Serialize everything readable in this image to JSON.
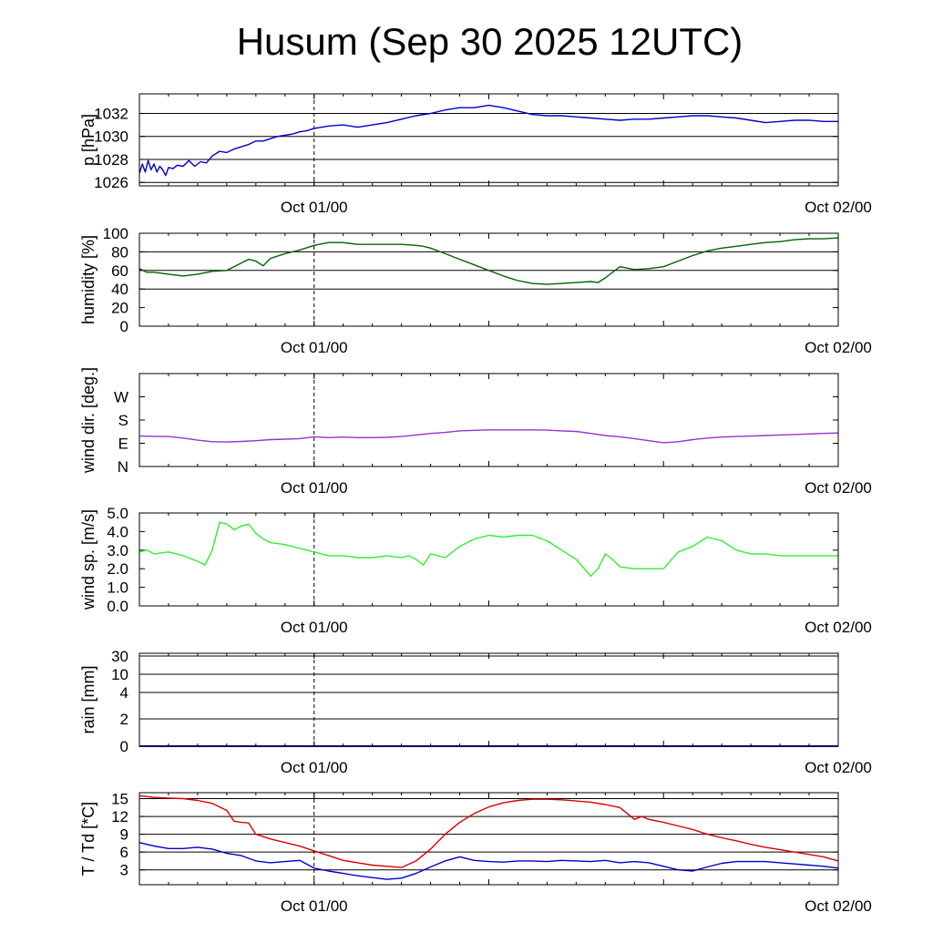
{
  "title": "Husum (Sep 30 2025 12UTC)",
  "colors": {
    "pressure": "#0000cc",
    "humidity": "#006400",
    "wind_dir": "#9932cc",
    "wind_speed": "#33ee33",
    "rain": "#0000cc",
    "temperature": "#dd0000",
    "dewpoint": "#0000cc"
  },
  "chart_data": [
    {
      "type": "line",
      "name": "pressure",
      "ylabel": "p [hPa]",
      "x_tick_labels": [
        "Oct 01/00",
        "Oct 02/00"
      ],
      "x_range_hours": [
        -12,
        36
      ],
      "ylim": [
        1025.7,
        1033.7
      ],
      "yticks": [
        1026,
        1028,
        1030,
        1032
      ],
      "ytick_labels": [
        "1026",
        "1028",
        "1030",
        "1032"
      ],
      "grid_lines": [
        1026,
        1028,
        1030,
        1032
      ],
      "series": [
        {
          "x": [
            -12,
            -11.8,
            -11.6,
            -11.4,
            -11.2,
            -11,
            -10.8,
            -10.6,
            -10.4,
            -10.2,
            -10,
            -9.7,
            -9.4,
            -9,
            -8.6,
            -8.2,
            -7.8,
            -7.4,
            -7,
            -6.5,
            -6,
            -5.5,
            -5,
            -4.5,
            -4,
            -3.5,
            -3,
            -2.5,
            -2,
            -1.5,
            -1,
            -0.5,
            0,
            1,
            2,
            3,
            4,
            5,
            6,
            7,
            8,
            9,
            10,
            11,
            12,
            13,
            14,
            15,
            16,
            17,
            18,
            19,
            20,
            21,
            22,
            23,
            24,
            25,
            26,
            27,
            28,
            29,
            30,
            31,
            32,
            33,
            34,
            35,
            36
          ],
          "values": [
            1026.8,
            1027.6,
            1026.9,
            1027.9,
            1027.1,
            1027.6,
            1026.9,
            1027.4,
            1027.1,
            1026.6,
            1027.3,
            1027.2,
            1027.5,
            1027.4,
            1027.9,
            1027.4,
            1027.8,
            1027.7,
            1028.3,
            1028.7,
            1028.6,
            1028.9,
            1029.1,
            1029.3,
            1029.6,
            1029.6,
            1029.8,
            1030.0,
            1030.1,
            1030.2,
            1030.4,
            1030.5,
            1030.7,
            1030.9,
            1031.0,
            1030.8,
            1031.0,
            1031.2,
            1031.5,
            1031.8,
            1032.0,
            1032.3,
            1032.5,
            1032.5,
            1032.7,
            1032.5,
            1032.2,
            1031.9,
            1031.8,
            1031.8,
            1031.7,
            1031.6,
            1031.5,
            1031.4,
            1031.5,
            1031.5,
            1031.6,
            1031.7,
            1031.8,
            1031.8,
            1031.7,
            1031.6,
            1031.4,
            1031.2,
            1031.3,
            1031.4,
            1031.4,
            1031.3,
            1031.3
          ]
        }
      ]
    },
    {
      "type": "line",
      "name": "humidity",
      "ylabel": "humidity [%]",
      "x_tick_labels": [
        "Oct 01/00",
        "Oct 02/00"
      ],
      "x_range_hours": [
        -12,
        36
      ],
      "ylim": [
        0,
        100
      ],
      "yticks": [
        0,
        20,
        40,
        60,
        80,
        100
      ],
      "ytick_labels": [
        "0",
        "20",
        "40",
        "60",
        "80",
        "100"
      ],
      "grid_lines": [
        40,
        60,
        80
      ],
      "series": [
        {
          "x": [
            -12,
            -11.5,
            -11,
            -10,
            -9,
            -8,
            -7,
            -6,
            -5.5,
            -5,
            -4.5,
            -4,
            -3.5,
            -3,
            -2,
            -1,
            0,
            1,
            2,
            3,
            4,
            5,
            6,
            7,
            7.5,
            8,
            9,
            10,
            11,
            12,
            13,
            14,
            15,
            16,
            17,
            18,
            19,
            19.5,
            20,
            21,
            22,
            23,
            24,
            25,
            26,
            27,
            28,
            29,
            30,
            31,
            32,
            33,
            34,
            35,
            36
          ],
          "values": [
            62,
            58,
            58,
            56,
            54,
            56,
            59,
            60,
            64,
            68,
            72,
            70,
            65,
            73,
            78,
            82,
            87,
            90,
            90,
            88,
            88,
            88,
            88,
            87,
            86,
            84,
            78,
            72,
            66,
            60,
            54,
            49,
            46,
            45,
            46,
            47,
            48,
            47,
            52,
            64,
            61,
            62,
            64,
            70,
            76,
            81,
            84,
            86,
            88,
            90,
            91,
            93,
            94,
            94,
            95
          ]
        }
      ]
    },
    {
      "type": "line",
      "name": "wind direction",
      "ylabel": "wind dir. [deg.]",
      "x_tick_labels": [
        "Oct 01/00",
        "Oct 02/00"
      ],
      "x_range_hours": [
        -12,
        36
      ],
      "ylim": [
        0,
        360
      ],
      "yticks": [
        0,
        90,
        180,
        270
      ],
      "ytick_labels": [
        "N",
        "E",
        "S",
        "W"
      ],
      "grid_lines": [],
      "series": [
        {
          "x": [
            -12,
            -11,
            -10,
            -9,
            -8,
            -7,
            -6,
            -5,
            -4,
            -3,
            -2,
            -1,
            0,
            1,
            2,
            3,
            4,
            5,
            6,
            7,
            8,
            9,
            10,
            11,
            12,
            13,
            14,
            15,
            16,
            17,
            18,
            19,
            20,
            21,
            22,
            23,
            24,
            25,
            26,
            27,
            28,
            29,
            30,
            31,
            32,
            33,
            34,
            35,
            36
          ],
          "values": [
            118,
            117,
            116,
            110,
            102,
            96,
            95,
            97,
            100,
            104,
            106,
            108,
            115,
            112,
            114,
            112,
            112,
            113,
            116,
            122,
            128,
            132,
            138,
            140,
            142,
            142,
            142,
            142,
            141,
            138,
            136,
            128,
            120,
            115,
            108,
            100,
            92,
            96,
            104,
            110,
            114,
            116,
            118,
            120,
            122,
            124,
            126,
            128,
            130
          ]
        }
      ]
    },
    {
      "type": "line",
      "name": "wind speed",
      "ylabel": "wind sp. [m/s]",
      "x_tick_labels": [
        "Oct 01/00",
        "Oct 02/00"
      ],
      "x_range_hours": [
        -12,
        36
      ],
      "ylim": [
        0,
        5
      ],
      "yticks": [
        0,
        1,
        2,
        3,
        4,
        5
      ],
      "ytick_labels": [
        "0.0",
        "1.0",
        "2.0",
        "3.0",
        "4.0",
        "5.0"
      ],
      "grid_lines": [],
      "series": [
        {
          "x": [
            -12,
            -11.5,
            -11,
            -10,
            -9,
            -8,
            -7.5,
            -7,
            -6.5,
            -6,
            -5.5,
            -5,
            -4.5,
            -4,
            -3.5,
            -3,
            -2,
            -1,
            0,
            1,
            2,
            3,
            4,
            5,
            6,
            6.5,
            7,
            7.5,
            8,
            9,
            10,
            11,
            12,
            13,
            14,
            15,
            16,
            17,
            18,
            19,
            19.5,
            20,
            20.5,
            21,
            22,
            23,
            24,
            25,
            26,
            27,
            28,
            29,
            30,
            31,
            32,
            33,
            34,
            35,
            36
          ],
          "values": [
            2.9,
            3.0,
            2.8,
            2.9,
            2.7,
            2.4,
            2.2,
            3.0,
            4.5,
            4.4,
            4.1,
            4.3,
            4.4,
            3.9,
            3.6,
            3.4,
            3.3,
            3.1,
            2.9,
            2.7,
            2.7,
            2.6,
            2.6,
            2.7,
            2.6,
            2.7,
            2.5,
            2.2,
            2.8,
            2.6,
            3.2,
            3.6,
            3.8,
            3.7,
            3.8,
            3.8,
            3.5,
            3.0,
            2.5,
            1.6,
            2.0,
            2.8,
            2.5,
            2.1,
            2.0,
            2.0,
            2.0,
            2.9,
            3.2,
            3.7,
            3.5,
            3.0,
            2.8,
            2.8,
            2.7,
            2.7,
            2.7,
            2.7,
            2.7
          ]
        }
      ]
    },
    {
      "type": "line",
      "name": "rain",
      "ylabel": "rain [mm]",
      "x_tick_labels": [
        "Oct 01/00",
        "Oct 02/00"
      ],
      "x_range_hours": [
        -12,
        36
      ],
      "ylim": [
        0,
        30
      ],
      "yticks": [
        0,
        2,
        4,
        10,
        30
      ],
      "ytick_labels": [
        "0",
        "2",
        "4",
        "10",
        "30"
      ],
      "grid_lines": [
        2,
        4,
        10,
        30
      ],
      "series": [
        {
          "x": [
            -12,
            36
          ],
          "values": [
            0,
            0
          ]
        }
      ]
    },
    {
      "type": "line",
      "name": "temperature and dewpoint",
      "ylabel": "T / Td [*C]",
      "x_tick_labels": [
        "Oct 01/00",
        "Oct 02/00"
      ],
      "x_range_hours": [
        -12,
        36
      ],
      "ylim": [
        0.5,
        16
      ],
      "yticks": [
        3,
        6,
        9,
        12,
        15
      ],
      "ytick_labels": [
        "3",
        "6",
        "9",
        "12",
        "15"
      ],
      "grid_lines": [
        3,
        6,
        9,
        12,
        15
      ],
      "series": [
        {
          "x": [
            -12,
            -11,
            -10,
            -9,
            -8,
            -7,
            -6,
            -5.5,
            -5,
            -4.5,
            -4,
            -3,
            -2,
            -1,
            0,
            1,
            2,
            3,
            4,
            5,
            6,
            7,
            8,
            9,
            10,
            11,
            12,
            13,
            14,
            15,
            16,
            17,
            18,
            19,
            20,
            21,
            22,
            22.5,
            23,
            24,
            25,
            26,
            27,
            28,
            29,
            30,
            31,
            32,
            33,
            34,
            35,
            36
          ],
          "values": [
            15.5,
            15.2,
            15.1,
            15.0,
            14.7,
            14.2,
            13.0,
            11.2,
            11.0,
            10.9,
            9.0,
            8.2,
            7.6,
            7.0,
            6.2,
            5.4,
            4.6,
            4.2,
            3.8,
            3.6,
            3.4,
            4.5,
            6.5,
            9.0,
            11.0,
            12.5,
            13.6,
            14.3,
            14.7,
            14.9,
            14.9,
            14.8,
            14.6,
            14.4,
            14.0,
            13.5,
            11.5,
            12.0,
            11.5,
            11.0,
            10.4,
            9.8,
            9.0,
            8.4,
            7.9,
            7.3,
            6.8,
            6.4,
            6.0,
            5.6,
            5.2,
            4.5
          ]
        },
        {
          "x": [
            -12,
            -11,
            -10,
            -9,
            -8,
            -7,
            -6,
            -5,
            -4,
            -3,
            -2,
            -1,
            0,
            1,
            2,
            3,
            4,
            5,
            6,
            7,
            8,
            9,
            10,
            11,
            12,
            13,
            14,
            15,
            16,
            17,
            18,
            19,
            20,
            21,
            22,
            23,
            24,
            25,
            26,
            27,
            28,
            29,
            30,
            31,
            32,
            33,
            34,
            35,
            36
          ],
          "values": [
            7.6,
            7.0,
            6.6,
            6.6,
            6.8,
            6.5,
            5.8,
            5.4,
            4.5,
            4.2,
            4.4,
            4.6,
            3.3,
            2.8,
            2.4,
            2.0,
            1.7,
            1.4,
            1.6,
            2.4,
            3.5,
            4.5,
            5.2,
            4.6,
            4.4,
            4.3,
            4.5,
            4.5,
            4.4,
            4.6,
            4.5,
            4.4,
            4.6,
            4.2,
            4.4,
            4.2,
            3.6,
            3.0,
            2.8,
            3.5,
            4.1,
            4.4,
            4.4,
            4.4,
            4.2,
            4.0,
            3.8,
            3.6,
            3.3
          ]
        }
      ]
    }
  ]
}
